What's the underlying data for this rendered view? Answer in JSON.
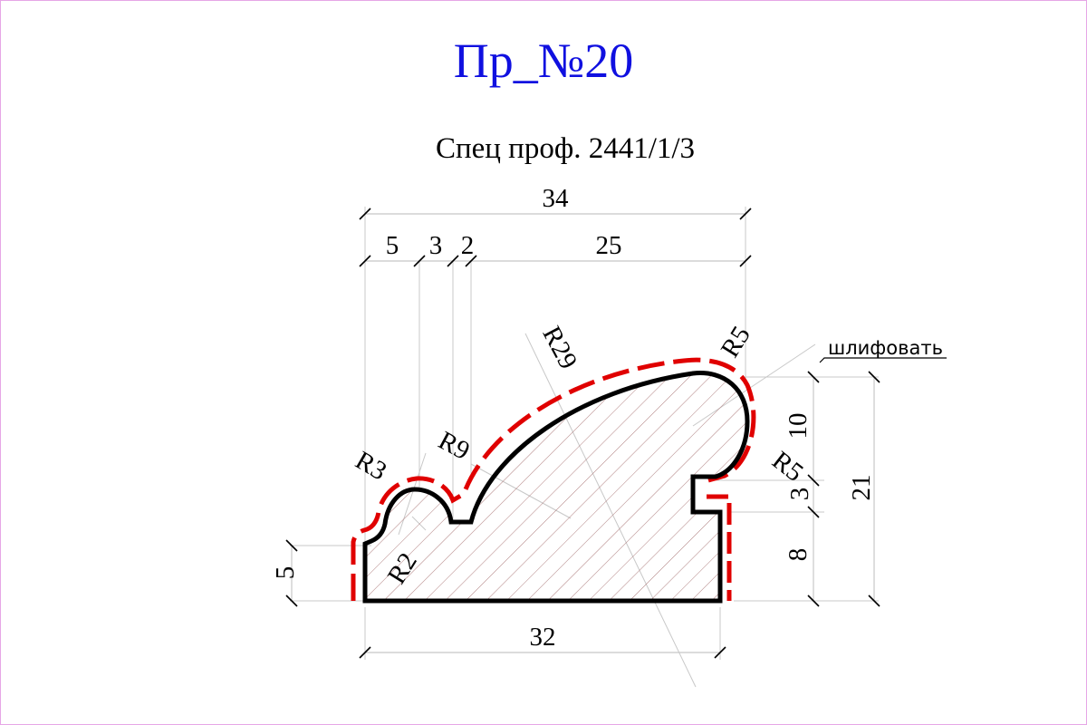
{
  "title": "Пр_№20",
  "subtitle": "Спец проф. 2441/1/3",
  "dimensions": {
    "overall_width": "34",
    "offset_a": "5",
    "offset_b": "3",
    "offset_c": "2",
    "top_span": "25",
    "base_width": "32",
    "left_height": "5",
    "right_top_height": "10",
    "notch_height": "3",
    "right_lower_height": "8",
    "total_height": "21"
  },
  "radii": {
    "r29": "R29",
    "r9": "R9",
    "r3": "R3",
    "r2": "R2",
    "r5_top": "R5",
    "r5_right": "R5"
  },
  "note": "шлифовать",
  "colors": {
    "title": "#1010e0",
    "finish_line": "#e00000",
    "profile": "#000000",
    "hatch": "#b08080",
    "frame": "#e6a6e6"
  }
}
